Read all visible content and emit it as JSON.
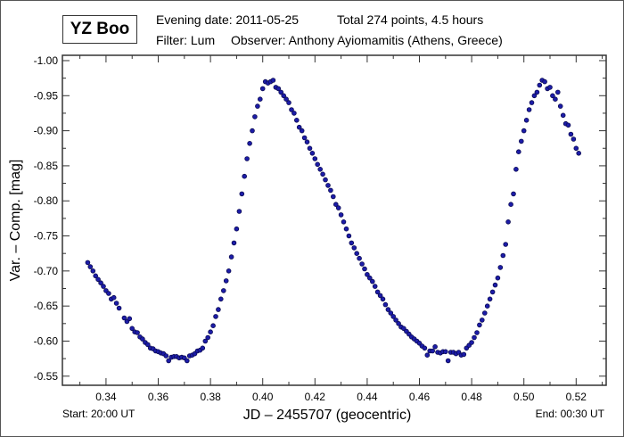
{
  "header": {
    "star_name": "YZ Boo",
    "line1_date": "Evening date: 2011-05-25",
    "line1_total": "Total 274 points, 4.5 hours",
    "line2_filter": "Filter: Lum",
    "line2_observer": "Observer: Anthony Ayiomamitis (Athens, Greece)"
  },
  "footer": {
    "start": "Start: 20:00 UT",
    "end": "End: 00:30 UT"
  },
  "chart_data": {
    "type": "scatter",
    "title": "YZ Boo",
    "xlabel": "JD – 2455707  (geocentric)",
    "ylabel": "Var. – Comp. [mag]",
    "xlim": [
      0.3233,
      0.5315
    ],
    "ylim": [
      -1.0076,
      -0.537
    ],
    "y_inverted": true,
    "grid": false,
    "marker_color": "#1c1ca8",
    "x_ticks": [
      "0.34",
      "0.36",
      "0.38",
      "0.40",
      "0.42",
      "0.44",
      "0.46",
      "0.48",
      "0.50",
      "0.52"
    ],
    "y_ticks": [
      "-1.00",
      "-0.95",
      "-0.90",
      "-0.85",
      "-0.80",
      "-0.75",
      "-0.70",
      "-0.65",
      "-0.60",
      "-0.55"
    ],
    "points": [
      [
        0.333,
        -0.712
      ],
      [
        0.334,
        -0.706
      ],
      [
        0.335,
        -0.7
      ],
      [
        0.336,
        -0.693
      ],
      [
        0.337,
        -0.688
      ],
      [
        0.338,
        -0.683
      ],
      [
        0.339,
        -0.678
      ],
      [
        0.34,
        -0.672
      ],
      [
        0.341,
        -0.668
      ],
      [
        0.342,
        -0.66
      ],
      [
        0.343,
        -0.662
      ],
      [
        0.344,
        -0.654
      ],
      [
        0.345,
        -0.647
      ],
      [
        0.347,
        -0.633
      ],
      [
        0.348,
        -0.628
      ],
      [
        0.349,
        -0.632
      ],
      [
        0.35,
        -0.618
      ],
      [
        0.351,
        -0.613
      ],
      [
        0.352,
        -0.612
      ],
      [
        0.353,
        -0.606
      ],
      [
        0.354,
        -0.603
      ],
      [
        0.355,
        -0.598
      ],
      [
        0.356,
        -0.595
      ],
      [
        0.357,
        -0.59
      ],
      [
        0.358,
        -0.589
      ],
      [
        0.359,
        -0.586
      ],
      [
        0.36,
        -0.585
      ],
      [
        0.361,
        -0.583
      ],
      [
        0.362,
        -0.582
      ],
      [
        0.363,
        -0.579
      ],
      [
        0.364,
        -0.572
      ],
      [
        0.365,
        -0.577
      ],
      [
        0.366,
        -0.578
      ],
      [
        0.367,
        -0.578
      ],
      [
        0.368,
        -0.576
      ],
      [
        0.369,
        -0.577
      ],
      [
        0.37,
        -0.576
      ],
      [
        0.371,
        -0.572
      ],
      [
        0.372,
        -0.579
      ],
      [
        0.373,
        -0.58
      ],
      [
        0.374,
        -0.582
      ],
      [
        0.375,
        -0.586
      ],
      [
        0.376,
        -0.587
      ],
      [
        0.377,
        -0.59
      ],
      [
        0.378,
        -0.6
      ],
      [
        0.379,
        -0.605
      ],
      [
        0.38,
        -0.613
      ],
      [
        0.381,
        -0.622
      ],
      [
        0.382,
        -0.635
      ],
      [
        0.383,
        -0.645
      ],
      [
        0.384,
        -0.66
      ],
      [
        0.385,
        -0.672
      ],
      [
        0.386,
        -0.686
      ],
      [
        0.387,
        -0.7
      ],
      [
        0.388,
        -0.72
      ],
      [
        0.389,
        -0.74
      ],
      [
        0.39,
        -0.76
      ],
      [
        0.391,
        -0.785
      ],
      [
        0.392,
        -0.81
      ],
      [
        0.393,
        -0.835
      ],
      [
        0.394,
        -0.86
      ],
      [
        0.395,
        -0.882
      ],
      [
        0.396,
        -0.9
      ],
      [
        0.397,
        -0.92
      ],
      [
        0.398,
        -0.935
      ],
      [
        0.399,
        -0.945
      ],
      [
        0.4,
        -0.96
      ],
      [
        0.401,
        -0.97
      ],
      [
        0.402,
        -0.968
      ],
      [
        0.403,
        -0.97
      ],
      [
        0.404,
        -0.972
      ],
      [
        0.405,
        -0.962
      ],
      [
        0.406,
        -0.96
      ],
      [
        0.407,
        -0.955
      ],
      [
        0.408,
        -0.95
      ],
      [
        0.409,
        -0.945
      ],
      [
        0.41,
        -0.94
      ],
      [
        0.411,
        -0.93
      ],
      [
        0.412,
        -0.925
      ],
      [
        0.413,
        -0.915
      ],
      [
        0.414,
        -0.905
      ],
      [
        0.415,
        -0.9
      ],
      [
        0.416,
        -0.89
      ],
      [
        0.417,
        -0.884
      ],
      [
        0.418,
        -0.875
      ],
      [
        0.419,
        -0.868
      ],
      [
        0.42,
        -0.86
      ],
      [
        0.421,
        -0.852
      ],
      [
        0.422,
        -0.845
      ],
      [
        0.423,
        -0.838
      ],
      [
        0.424,
        -0.83
      ],
      [
        0.425,
        -0.822
      ],
      [
        0.426,
        -0.815
      ],
      [
        0.427,
        -0.806
      ],
      [
        0.428,
        -0.795
      ],
      [
        0.429,
        -0.79
      ],
      [
        0.43,
        -0.78
      ],
      [
        0.431,
        -0.77
      ],
      [
        0.432,
        -0.76
      ],
      [
        0.433,
        -0.75
      ],
      [
        0.434,
        -0.74
      ],
      [
        0.435,
        -0.733
      ],
      [
        0.436,
        -0.725
      ],
      [
        0.437,
        -0.718
      ],
      [
        0.438,
        -0.71
      ],
      [
        0.439,
        -0.703
      ],
      [
        0.44,
        -0.695
      ],
      [
        0.441,
        -0.69
      ],
      [
        0.442,
        -0.685
      ],
      [
        0.443,
        -0.678
      ],
      [
        0.444,
        -0.67
      ],
      [
        0.445,
        -0.665
      ],
      [
        0.446,
        -0.66
      ],
      [
        0.447,
        -0.652
      ],
      [
        0.448,
        -0.645
      ],
      [
        0.449,
        -0.64
      ],
      [
        0.45,
        -0.635
      ],
      [
        0.451,
        -0.63
      ],
      [
        0.452,
        -0.625
      ],
      [
        0.453,
        -0.62
      ],
      [
        0.454,
        -0.618
      ],
      [
        0.455,
        -0.614
      ],
      [
        0.456,
        -0.61
      ],
      [
        0.457,
        -0.606
      ],
      [
        0.458,
        -0.603
      ],
      [
        0.459,
        -0.6
      ],
      [
        0.46,
        -0.597
      ],
      [
        0.461,
        -0.593
      ],
      [
        0.462,
        -0.59
      ],
      [
        0.463,
        -0.58
      ],
      [
        0.464,
        -0.586
      ],
      [
        0.465,
        -0.586
      ],
      [
        0.466,
        -0.592
      ],
      [
        0.467,
        -0.584
      ],
      [
        0.468,
        -0.583
      ],
      [
        0.469,
        -0.585
      ],
      [
        0.47,
        -0.585
      ],
      [
        0.471,
        -0.572
      ],
      [
        0.472,
        -0.584
      ],
      [
        0.473,
        -0.584
      ],
      [
        0.474,
        -0.582
      ],
      [
        0.475,
        -0.584
      ],
      [
        0.476,
        -0.58
      ],
      [
        0.477,
        -0.581
      ],
      [
        0.478,
        -0.59
      ],
      [
        0.479,
        -0.594
      ],
      [
        0.48,
        -0.598
      ],
      [
        0.481,
        -0.605
      ],
      [
        0.482,
        -0.612
      ],
      [
        0.483,
        -0.623
      ],
      [
        0.484,
        -0.63
      ],
      [
        0.485,
        -0.64
      ],
      [
        0.486,
        -0.65
      ],
      [
        0.487,
        -0.66
      ],
      [
        0.488,
        -0.67
      ],
      [
        0.489,
        -0.68
      ],
      [
        0.49,
        -0.69
      ],
      [
        0.491,
        -0.705
      ],
      [
        0.492,
        -0.722
      ],
      [
        0.493,
        -0.738
      ],
      [
        0.494,
        -0.77
      ],
      [
        0.495,
        -0.795
      ],
      [
        0.496,
        -0.81
      ],
      [
        0.497,
        -0.845
      ],
      [
        0.498,
        -0.87
      ],
      [
        0.499,
        -0.885
      ],
      [
        0.5,
        -0.9
      ],
      [
        0.501,
        -0.915
      ],
      [
        0.502,
        -0.93
      ],
      [
        0.503,
        -0.94
      ],
      [
        0.504,
        -0.95
      ],
      [
        0.505,
        -0.955
      ],
      [
        0.506,
        -0.965
      ],
      [
        0.507,
        -0.972
      ],
      [
        0.508,
        -0.97
      ],
      [
        0.509,
        -0.96
      ],
      [
        0.51,
        -0.962
      ],
      [
        0.511,
        -0.95
      ],
      [
        0.512,
        -0.945
      ],
      [
        0.513,
        -0.955
      ],
      [
        0.514,
        -0.935
      ],
      [
        0.515,
        -0.922
      ],
      [
        0.516,
        -0.91
      ],
      [
        0.517,
        -0.908
      ],
      [
        0.518,
        -0.895
      ],
      [
        0.519,
        -0.888
      ],
      [
        0.52,
        -0.875
      ],
      [
        0.521,
        -0.868
      ]
    ]
  }
}
